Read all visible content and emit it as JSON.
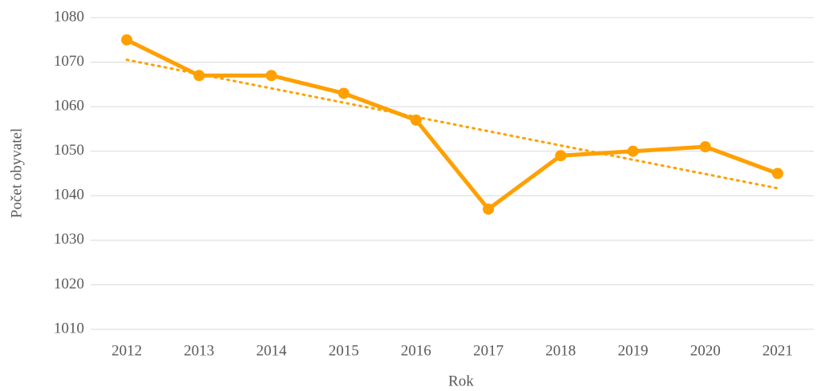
{
  "chart_data": {
    "type": "line",
    "x_label": "Rok",
    "y_label": "Počet obyvatel",
    "categories": [
      "2012",
      "2013",
      "2014",
      "2015",
      "2016",
      "2017",
      "2018",
      "2019",
      "2020",
      "2021"
    ],
    "series": [
      {
        "name": "Počet obyvatel",
        "color": "#ffa000",
        "values": [
          1075,
          1067,
          1067,
          1063,
          1057,
          1037,
          1049,
          1050,
          1051,
          1045
        ]
      }
    ],
    "trendline": "linear",
    "ylim": [
      1010,
      1080
    ],
    "yticks": [
      1010,
      1020,
      1030,
      1040,
      1050,
      1060,
      1070,
      1080
    ],
    "grid": true
  }
}
